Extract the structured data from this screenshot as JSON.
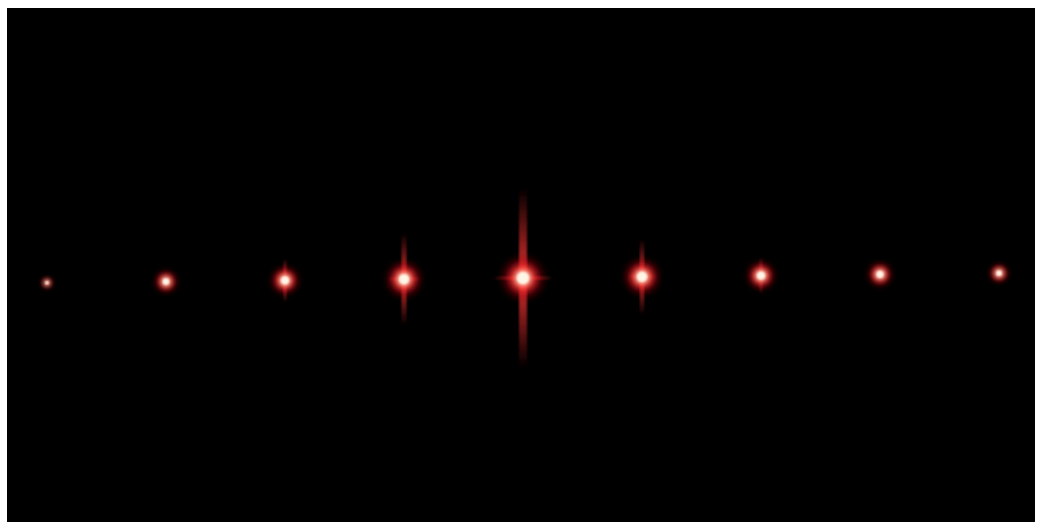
{
  "scene": {
    "background_color": "#000000",
    "border_color": "#ffffff",
    "spot_core_color": "#fff6e8",
    "spot_glow_color": "#ff2a2a",
    "spot_count": 9,
    "spots": [
      {
        "order": -4,
        "brightness": 0.15,
        "streak": 0.0
      },
      {
        "order": -3,
        "brightness": 0.45,
        "streak": 0.0
      },
      {
        "order": -2,
        "brightness": 0.6,
        "streak": 0.15
      },
      {
        "order": -1,
        "brightness": 0.8,
        "streak": 0.45
      },
      {
        "order": 0,
        "brightness": 1.0,
        "streak": 1.0
      },
      {
        "order": 1,
        "brightness": 0.8,
        "streak": 0.35
      },
      {
        "order": 2,
        "brightness": 0.6,
        "streak": 0.1
      },
      {
        "order": 3,
        "brightness": 0.5,
        "streak": 0.0
      },
      {
        "order": 4,
        "brightness": 0.35,
        "streak": 0.0
      }
    ]
  }
}
